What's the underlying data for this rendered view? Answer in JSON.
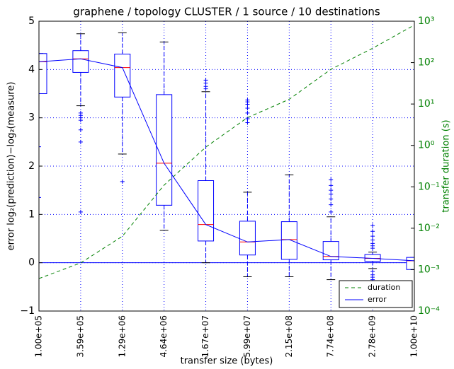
{
  "chart_data": {
    "type": "box",
    "title": "graphene / topology CLUSTER / 1 source / 10 destinations",
    "x_label": "transfer size (bytes)",
    "y_label": "error log₂(prediction)−log₂(measure)",
    "y2_label": "transfer duration (s)",
    "categories": [
      "1.00e+05",
      "3.59e+05",
      "1.29e+06",
      "4.64e+06",
      "1.67e+07",
      "5.99e+07",
      "2.15e+08",
      "7.74e+08",
      "2.78e+09",
      "1.00e+10"
    ],
    "ylim": [
      -1,
      5
    ],
    "yticks": [
      {
        "value": -1,
        "label": "−1"
      },
      0,
      1,
      2,
      3,
      4,
      5
    ],
    "y2lim": [
      0.0001,
      1000
    ],
    "y2_log": true,
    "y2ticks": [
      {
        "value": 0.0001,
        "label": "10⁻⁴"
      },
      {
        "value": 0.001,
        "label": "10⁻³"
      },
      {
        "value": 0.01,
        "label": "10⁻²"
      },
      {
        "value": 0.1,
        "label": "10⁻¹"
      },
      {
        "value": 1,
        "label": "10⁰"
      },
      {
        "value": 10,
        "label": "10¹"
      },
      {
        "value": 100,
        "label": "10²"
      },
      {
        "value": 1000,
        "label": "10³"
      }
    ],
    "grid": true,
    "legend": "lower right",
    "box_color": "#0000ff",
    "median_color": "#ff0000",
    "boxes": [
      {
        "q1": 3.5,
        "median": 4.16,
        "q3": 4.33,
        "whislo": 3.5,
        "whishi": 4.33,
        "fliers": [
          2.4,
          1.35
        ]
      },
      {
        "q1": 3.94,
        "median": 4.22,
        "q3": 4.39,
        "whislo": 3.25,
        "whishi": 4.74,
        "fliers": [
          3.1,
          3.05,
          3.0,
          2.95,
          2.75,
          2.5,
          1.05
        ]
      },
      {
        "q1": 3.43,
        "median": 4.04,
        "q3": 4.32,
        "whislo": 2.25,
        "whishi": 4.76,
        "fliers": [
          1.68
        ]
      },
      {
        "q1": 1.19,
        "median": 2.06,
        "q3": 3.48,
        "whislo": 0.67,
        "whishi": 4.57,
        "fliers": []
      },
      {
        "q1": 0.45,
        "median": 0.79,
        "q3": 1.7,
        "whislo": 0,
        "whishi": 3.54,
        "fliers": [
          3.78,
          3.72,
          3.65,
          3.6
        ]
      },
      {
        "q1": 0.16,
        "median": 0.43,
        "q3": 0.86,
        "whislo": -0.29,
        "whishi": 1.46,
        "fliers": [
          3.37,
          3.33,
          3.28,
          3.2,
          3.1,
          2.98,
          2.9
        ]
      },
      {
        "q1": 0.07,
        "median": 0.48,
        "q3": 0.85,
        "whislo": -0.29,
        "whishi": 1.82,
        "fliers": []
      },
      {
        "q1": 0.06,
        "median": 0.13,
        "q3": 0.44,
        "whislo": -0.35,
        "whishi": 0.95,
        "fliers": [
          1.72,
          1.6,
          1.5,
          1.42,
          1.32,
          1.2,
          1.05
        ]
      },
      {
        "q1": 0.03,
        "median": 0.09,
        "q3": 0.17,
        "whislo": -0.12,
        "whishi": 0.22,
        "fliers": [
          0.77,
          0.65,
          0.55,
          0.47,
          0.4,
          0.35,
          0.3,
          -0.18,
          -0.25,
          -0.3,
          -0.35
        ]
      },
      {
        "q1": -0.14,
        "median": 0.04,
        "q3": 0.11,
        "whislo": -0.14,
        "whishi": 0.11,
        "fliers": []
      }
    ],
    "series": [
      {
        "name": "duration",
        "color": "#008000",
        "axis": "y2",
        "values": [
          0.00061,
          0.00145,
          0.0064,
          0.11,
          0.91,
          4.7,
          13,
          69,
          222,
          810
        ]
      },
      {
        "name": "error",
        "color": "#0000ff",
        "from": "median"
      }
    ]
  }
}
